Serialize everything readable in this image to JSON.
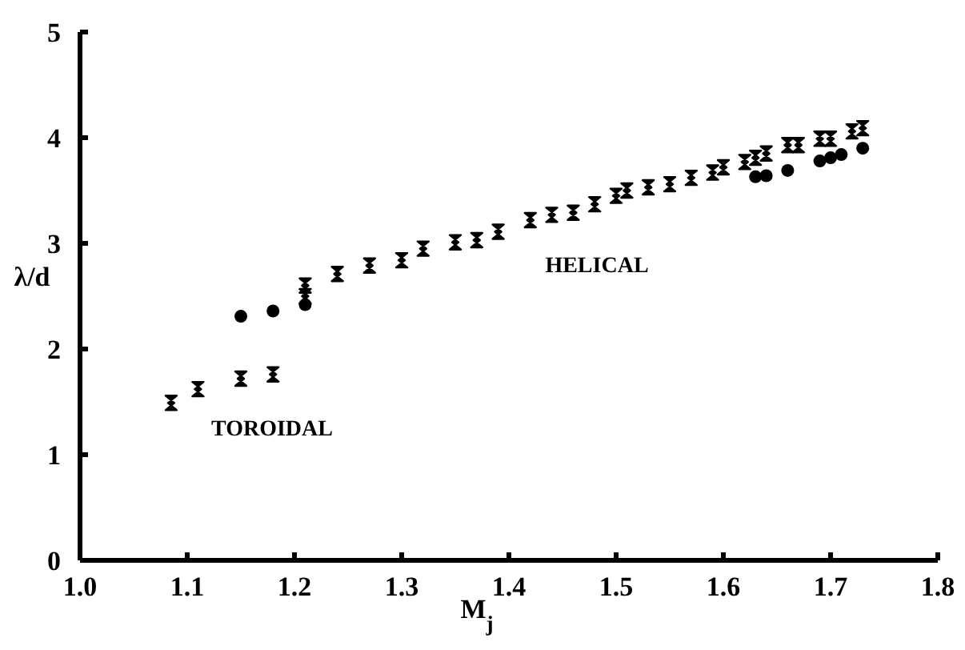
{
  "chart_data": {
    "type": "scatter",
    "xlabel": "M$_{j}$",
    "ylabel": "λ/d",
    "xlim": [
      1.0,
      1.8
    ],
    "ylim": [
      0,
      5
    ],
    "xticks": [
      {
        "value": 1.0,
        "label": "1.0"
      },
      1.1,
      1.2,
      1.3,
      1.4,
      1.5,
      1.6,
      1.7,
      1.8
    ],
    "yticks": [
      0,
      1,
      2,
      3,
      4,
      5
    ],
    "grid": false,
    "series": [
      {
        "color": "#000000",
        "marker": "cross",
        "x": [
          1.085,
          1.11,
          1.15,
          1.18,
          1.21,
          1.21,
          1.24,
          1.27,
          1.3,
          1.32,
          1.35,
          1.37,
          1.39,
          1.42,
          1.44,
          1.46,
          1.48,
          1.5,
          1.51,
          1.53,
          1.55,
          1.57,
          1.59,
          1.6,
          1.62,
          1.63,
          1.64,
          1.66,
          1.67,
          1.69,
          1.7,
          1.72,
          1.73
        ],
        "values": [
          1.49,
          1.62,
          1.72,
          1.76,
          2.6,
          2.5,
          2.71,
          2.79,
          2.84,
          2.95,
          3.01,
          3.03,
          3.11,
          3.22,
          3.27,
          3.29,
          3.37,
          3.45,
          3.5,
          3.53,
          3.56,
          3.62,
          3.67,
          3.72,
          3.77,
          3.81,
          3.85,
          3.93,
          3.93,
          3.99,
          3.99,
          4.06,
          4.09
        ]
      },
      {
        "color": "#000000",
        "marker": "circle",
        "x": [
          1.15,
          1.18,
          1.21,
          1.63,
          1.64,
          1.66,
          1.69,
          1.7,
          1.71,
          1.73
        ],
        "values": [
          2.31,
          2.36,
          2.42,
          3.63,
          3.64,
          3.69,
          3.78,
          3.81,
          3.84,
          3.9
        ]
      }
    ],
    "annotations": [
      "TOROIDAL",
      "HELICAL"
    ]
  }
}
